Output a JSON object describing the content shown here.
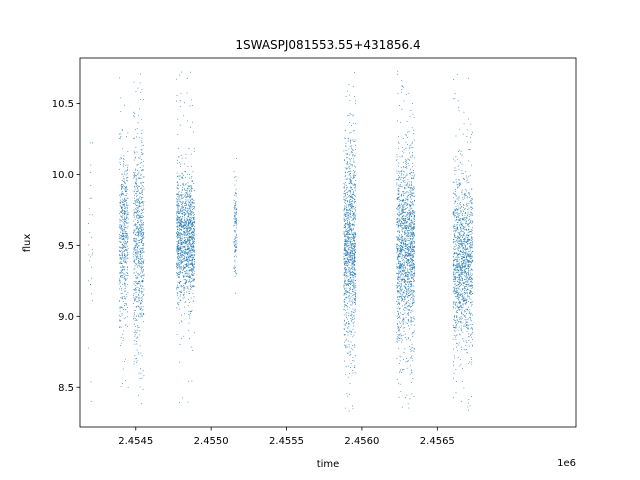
{
  "chart_data": {
    "type": "scatter",
    "title": "1SWASPJ081553.55+431856.4",
    "xlabel": "time",
    "ylabel": "flux",
    "x_offset_label": "1e6",
    "xlim": [
      2.45413,
      2.45742
    ],
    "ylim": [
      8.22,
      10.82
    ],
    "x_ticks": [
      2.4545,
      2.455,
      2.4555,
      2.456,
      2.4565
    ],
    "x_tick_labels": [
      "2.4545",
      "2.4550",
      "2.4555",
      "2.4560",
      "2.4565"
    ],
    "y_ticks": [
      8.5,
      9.0,
      9.5,
      10.0,
      10.5
    ],
    "y_tick_labels": [
      "8.5",
      "9.0",
      "9.5",
      "10.0",
      "10.5"
    ],
    "grid": false,
    "legend": "none",
    "marker_color": "#1f77b4",
    "clusters": [
      {
        "center": 2.4542,
        "width": 3e-05,
        "mean": 9.55,
        "sd": 0.55,
        "count": 30
      },
      {
        "center": 2.45442,
        "width": 6e-05,
        "mean": 9.55,
        "sd": 0.3,
        "count": 520
      },
      {
        "center": 2.45452,
        "width": 7e-05,
        "mean": 9.5,
        "sd": 0.38,
        "count": 680
      },
      {
        "center": 2.45483,
        "width": 0.00012,
        "mean": 9.55,
        "sd": 0.22,
        "count": 1300
      },
      {
        "center": 2.45516,
        "width": 2e-05,
        "mean": 9.6,
        "sd": 0.18,
        "count": 120
      },
      {
        "center": 2.45592,
        "width": 8e-05,
        "mean": 9.5,
        "sd": 0.35,
        "count": 1100
      },
      {
        "center": 2.45629,
        "width": 0.00012,
        "mean": 9.5,
        "sd": 0.33,
        "count": 1500
      },
      {
        "center": 2.45667,
        "width": 0.00013,
        "mean": 9.4,
        "sd": 0.3,
        "count": 1300
      }
    ]
  }
}
